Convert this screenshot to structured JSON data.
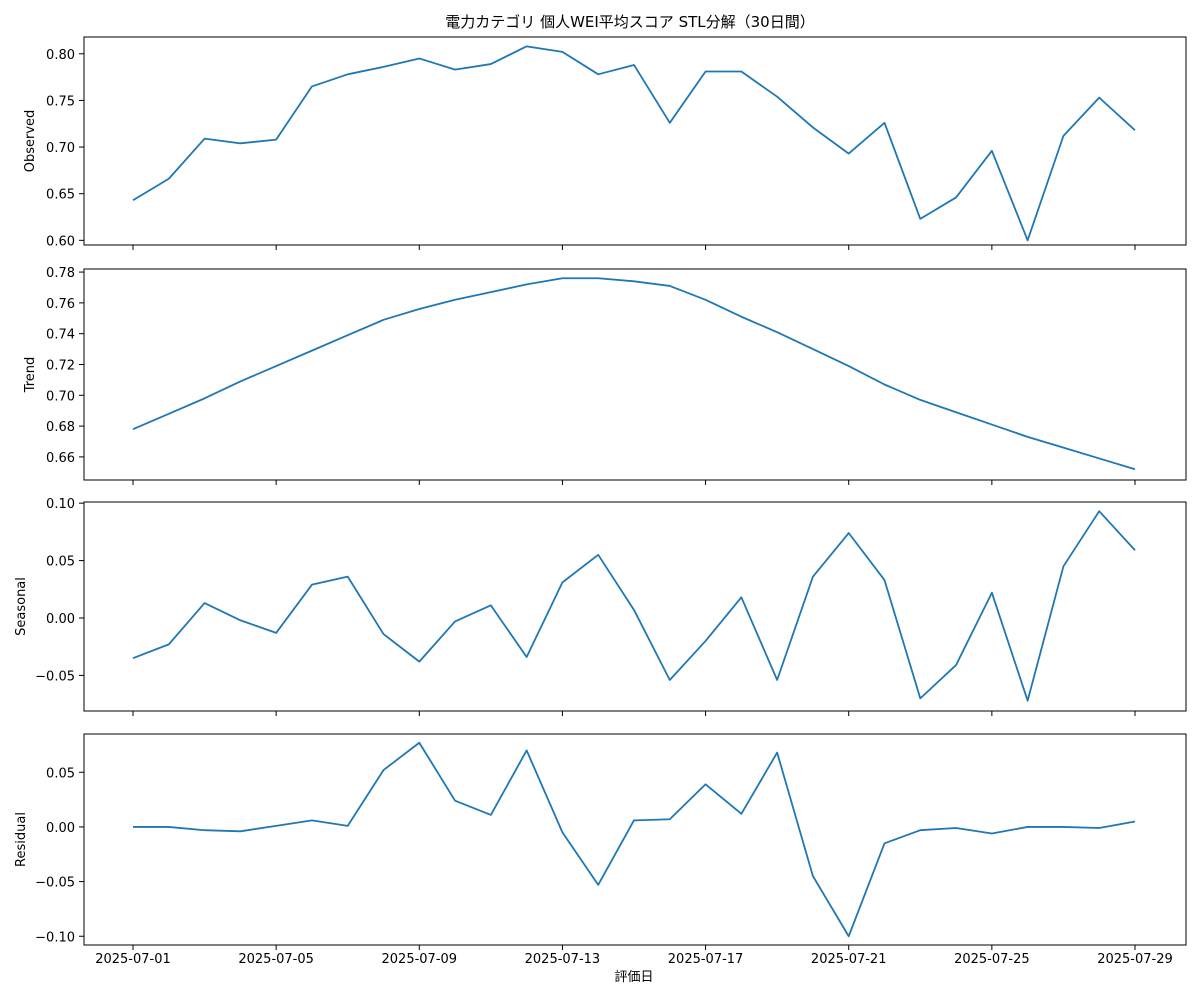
{
  "chart_data": {
    "type": "line",
    "title": "電力カテゴリ 個人WEI平均スコア STL分解（30日間）",
    "xlabel": "評価日",
    "x_tick_labels": [
      "2025-07-01",
      "2025-07-05",
      "2025-07-09",
      "2025-07-13",
      "2025-07-17",
      "2025-07-21",
      "2025-07-25",
      "2025-07-29"
    ],
    "x_start": "2025-07-01",
    "x_end": "2025-07-29",
    "line_color": "#1f77b4",
    "grid": false,
    "panels": [
      {
        "ylabel": "Observed",
        "ylim": [
          0.595,
          0.818
        ],
        "yticks": [
          0.6,
          0.65,
          0.7,
          0.75,
          0.8
        ],
        "ytick_labels": [
          "0.60",
          "0.65",
          "0.70",
          "0.75",
          "0.80"
        ],
        "values": [
          0.643,
          0.666,
          0.709,
          0.704,
          0.708,
          0.765,
          0.778,
          0.786,
          0.795,
          0.783,
          0.789,
          0.808,
          0.802,
          0.778,
          0.788,
          0.726,
          0.781,
          0.781,
          0.754,
          0.721,
          0.693,
          0.726,
          0.623,
          0.646,
          0.696,
          0.6,
          0.712,
          0.753,
          0.718
        ]
      },
      {
        "ylabel": "Trend",
        "ylim": [
          0.645,
          0.782
        ],
        "yticks": [
          0.66,
          0.68,
          0.7,
          0.72,
          0.74,
          0.76,
          0.78
        ],
        "ytick_labels": [
          "0.66",
          "0.68",
          "0.70",
          "0.72",
          "0.74",
          "0.76",
          "0.78"
        ],
        "values": [
          0.678,
          0.688,
          0.698,
          0.709,
          0.719,
          0.729,
          0.739,
          0.749,
          0.756,
          0.762,
          0.767,
          0.772,
          0.776,
          0.776,
          0.774,
          0.771,
          0.762,
          0.751,
          0.741,
          0.73,
          0.719,
          0.707,
          0.697,
          0.689,
          0.681,
          0.673,
          0.666,
          0.659,
          0.652
        ]
      },
      {
        "ylabel": "Seasonal",
        "ylim": [
          -0.081,
          0.101
        ],
        "yticks": [
          -0.05,
          0.0,
          0.05,
          0.1
        ],
        "ytick_labels": [
          "−0.05",
          "0.00",
          "0.05",
          "0.10"
        ],
        "values": [
          -0.035,
          -0.023,
          0.013,
          -0.002,
          -0.013,
          0.029,
          0.036,
          -0.014,
          -0.038,
          -0.003,
          0.011,
          -0.034,
          0.031,
          0.055,
          0.007,
          -0.054,
          -0.02,
          0.018,
          -0.054,
          0.036,
          0.074,
          0.033,
          -0.07,
          -0.041,
          0.022,
          -0.072,
          0.045,
          0.093,
          0.059
        ]
      },
      {
        "ylabel": "Residual",
        "ylim": [
          -0.108,
          0.085
        ],
        "yticks": [
          -0.1,
          -0.05,
          0.0,
          0.05
        ],
        "ytick_labels": [
          "−0.10",
          "−0.05",
          "0.00",
          "0.05"
        ],
        "values": [
          0.0,
          0.0,
          -0.003,
          -0.004,
          0.001,
          0.006,
          0.001,
          0.052,
          0.077,
          0.024,
          0.011,
          0.07,
          -0.005,
          -0.053,
          0.006,
          0.007,
          0.039,
          0.012,
          0.068,
          -0.045,
          -0.1,
          -0.015,
          -0.003,
          -0.001,
          -0.006,
          0.0,
          0.0,
          -0.001,
          0.005
        ]
      }
    ]
  }
}
